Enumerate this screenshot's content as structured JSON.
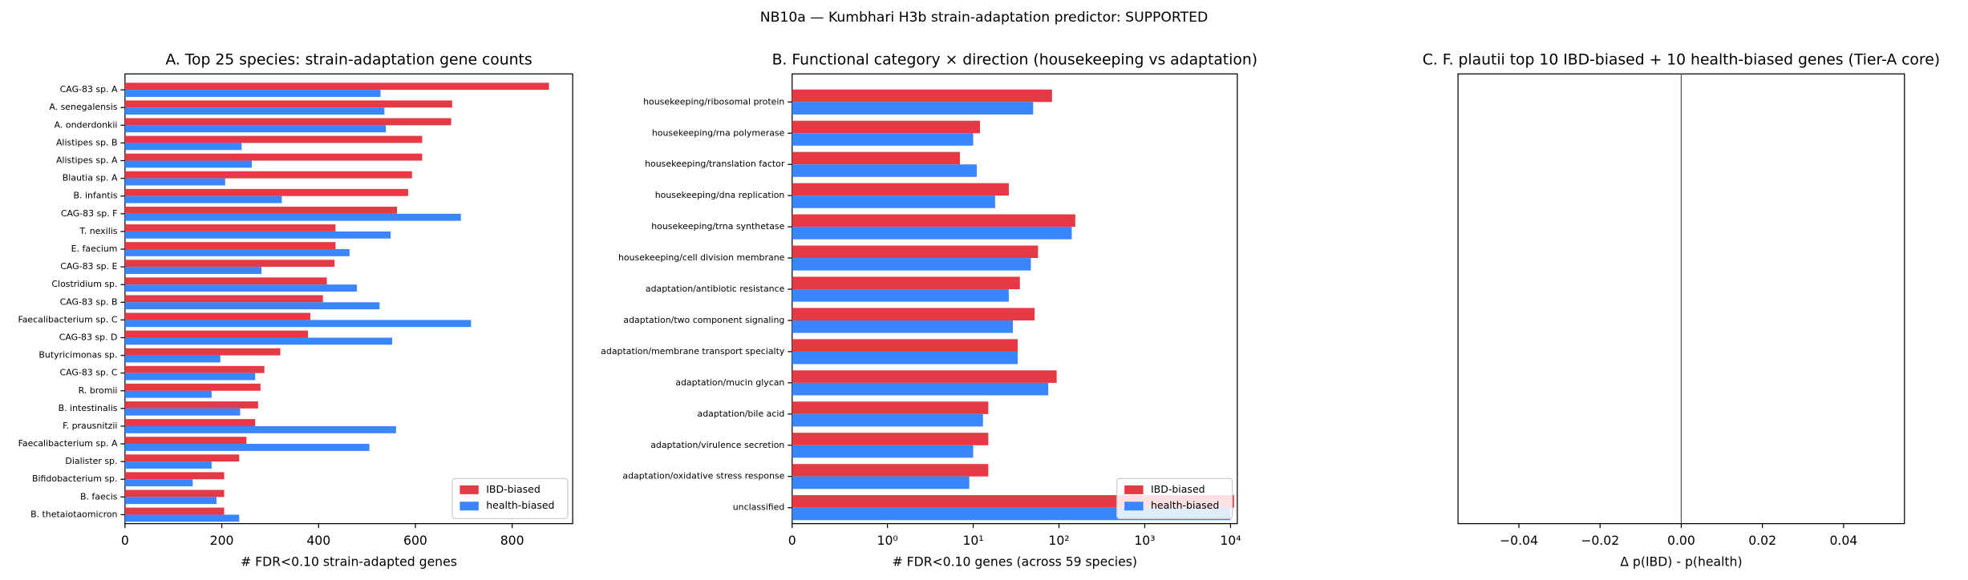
{
  "figure_title": "NB10a — Kumbhari H3b strain-adaptation predictor: SUPPORTED",
  "chart_data": [
    {
      "type": "barh",
      "title": "A. Top 25 species: strain-adaptation gene counts",
      "xlabel": "# FDR<0.10 strain-adapted genes",
      "categories": [
        "CAG-83 sp. A",
        "A. senegalensis",
        "A. onderdonkii",
        "Alistipes sp. B",
        "Alistipes sp. A",
        "Blautia sp. A",
        "B. infantis",
        "CAG-83 sp. F",
        "T. nexilis",
        "E. faecium",
        "CAG-83 sp. E",
        "Clostridium sp.",
        "CAG-83 sp. B",
        "Faecalibacterium sp. C",
        "CAG-83 sp. D",
        "Butyricimonas sp.",
        "CAG-83 sp. C",
        "R. bromii",
        "B. intestinalis",
        "F. prausnitzii",
        "Faecalibacterium sp. A",
        "Dialister sp.",
        "Bifidobacterium sp.",
        "B. faecis",
        "B. thetaiotaomicron"
      ],
      "series": [
        {
          "name": "IBD-biased",
          "color": "#e63946",
          "values": [
            876,
            676,
            674,
            614,
            614,
            593,
            585,
            562,
            435,
            435,
            433,
            417,
            409,
            383,
            378,
            321,
            288,
            280,
            275,
            269,
            251,
            236,
            205,
            205,
            205
          ]
        },
        {
          "name": "health-biased",
          "color": "#3a86ff",
          "values": [
            528,
            536,
            539,
            241,
            262,
            207,
            324,
            694,
            549,
            464,
            282,
            479,
            526,
            715,
            552,
            197,
            269,
            179,
            238,
            560,
            505,
            179,
            140,
            189,
            236
          ]
        }
      ],
      "xlim": [
        0,
        925
      ],
      "xticks": [
        0,
        200,
        400,
        600,
        800
      ],
      "legend": "lower right"
    },
    {
      "type": "barh",
      "title": "B. Functional category × direction (housekeeping vs adaptation)",
      "xlabel": "# FDR<0.10 genes (across 59 species)",
      "categories": [
        "housekeeping/ribosomal protein",
        "housekeeping/rna polymerase",
        "housekeeping/translation factor",
        "housekeeping/dna replication",
        "housekeeping/trna synthetase",
        "housekeeping/cell division membrane",
        "adaptation/antibiotic resistance",
        "adaptation/two component signaling",
        "adaptation/membrane transport specialty",
        "adaptation/mucin glycan",
        "adaptation/bile acid",
        "adaptation/virulence secretion",
        "adaptation/oxidative stress response",
        "unclassified"
      ],
      "series": [
        {
          "name": "IBD-biased",
          "color": "#e63946",
          "values": [
            83,
            12,
            7,
            26,
            155,
            57,
            35,
            52,
            33,
            94,
            15,
            15,
            15,
            11000
          ]
        },
        {
          "name": "health-biased",
          "color": "#3a86ff",
          "values": [
            50,
            10,
            11,
            18,
            141,
            47,
            26,
            29,
            33,
            75,
            13,
            10,
            9,
            10000
          ]
        }
      ],
      "xscale": "symlog",
      "xlim": [
        0,
        12000
      ],
      "xticks": [
        0,
        {
          "value": 1,
          "label": "10⁰"
        },
        {
          "value": 10,
          "label": "10¹"
        },
        {
          "value": 100,
          "label": "10²"
        },
        {
          "value": 1000,
          "label": "10³"
        },
        {
          "value": 10000,
          "label": "10⁴"
        }
      ],
      "legend": "lower right"
    },
    {
      "type": "barh",
      "title": "C. F. plautii top 10 IBD-biased + 10 health-biased genes (Tier-A core)",
      "xlabel": "Δ p(IBD) - p(health)",
      "xlim": [
        -0.055,
        0.055
      ],
      "xticks": [
        {
          "value": -0.04,
          "label": "−0.04"
        },
        {
          "value": -0.02,
          "label": "−0.02"
        },
        {
          "value": 0,
          "label": "0.00"
        },
        0.02,
        0.04
      ],
      "vline": 0
    }
  ]
}
